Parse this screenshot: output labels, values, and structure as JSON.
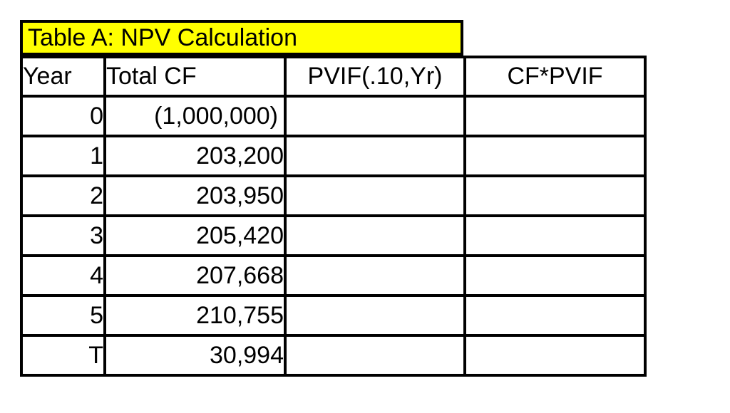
{
  "title": {
    "label": "Table A: NPV Calculation"
  },
  "colors": {
    "title_bg": "#FFFF00",
    "highlight_bg": "#9DC3E6",
    "border": "#000000",
    "page_bg": "#FFFFFF"
  },
  "table": {
    "headers": [
      "Year",
      "Total CF",
      "PVIF(.10,Yr)",
      "CF*PVIF"
    ],
    "rows": [
      {
        "year": "0",
        "total_cf": "(1,000,000)",
        "pvif": "",
        "cf_pvif": ""
      },
      {
        "year": "1",
        "total_cf": "203,200",
        "pvif": "",
        "cf_pvif": ""
      },
      {
        "year": "2",
        "total_cf": "203,950",
        "pvif": "",
        "cf_pvif": ""
      },
      {
        "year": "3",
        "total_cf": "205,420",
        "pvif": "",
        "cf_pvif": ""
      },
      {
        "year": "4",
        "total_cf": "207,668",
        "pvif": "",
        "cf_pvif": ""
      },
      {
        "year": "5",
        "total_cf": "210,755",
        "pvif": "",
        "cf_pvif": ""
      },
      {
        "year": "T",
        "total_cf": "30,994",
        "pvif": "",
        "cf_pvif": ""
      }
    ]
  }
}
